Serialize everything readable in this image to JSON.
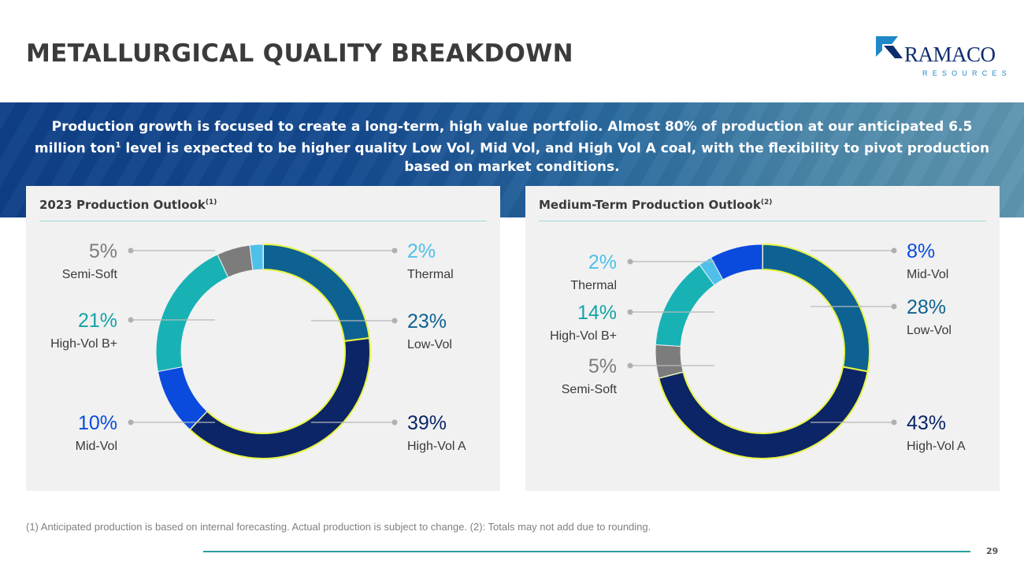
{
  "slide": {
    "title": "METALLURGICAL QUALITY BREAKDOWN",
    "page_number": "29"
  },
  "logo": {
    "word": "RAMACO",
    "sub": "RESOURCES"
  },
  "banner": {
    "text_before": "Production growth is focused to create a long-term, high value portfolio. Almost 80% of production at our anticipated 6.5 million ton",
    "sup": "1",
    "text_after": " level is expected to be higher quality Low Vol, Mid Vol, and High Vol A coal, with the flexibility to pivot production based on market conditions."
  },
  "footnote": "(1) Anticipated production is based on internal forecasting. Actual production is subject to change.  (2): Totals may not add due to rounding.",
  "colors": {
    "low_vol": "#0e6292",
    "high_vol_a": "#0b2566",
    "mid_vol": "#0a4bde",
    "high_vol_b_plus": "#18b2b5",
    "semi_soft": "#7c7c7c",
    "thermal": "#4ec0ea"
  },
  "chart_data": [
    {
      "type": "pie",
      "title": "2023 Production Outlook",
      "title_sup": "(1)",
      "categories": [
        "Low-Vol",
        "High-Vol A",
        "Mid-Vol",
        "High-Vol B+",
        "Semi-Soft",
        "Thermal"
      ],
      "values": [
        23,
        39,
        10,
        21,
        5,
        2
      ],
      "value_labels": [
        "23%",
        "39%",
        "10%",
        "21%",
        "5%",
        "2%"
      ]
    },
    {
      "type": "pie",
      "title": "Medium-Term Production Outlook",
      "title_sup": "(2)",
      "categories": [
        "Low-Vol",
        "High-Vol A",
        "Semi-Soft",
        "High-Vol B+",
        "Thermal",
        "Mid-Vol"
      ],
      "values": [
        28,
        43,
        5,
        14,
        2,
        8
      ],
      "value_labels": [
        "28%",
        "43%",
        "5%",
        "14%",
        "2%",
        "8%"
      ]
    }
  ]
}
